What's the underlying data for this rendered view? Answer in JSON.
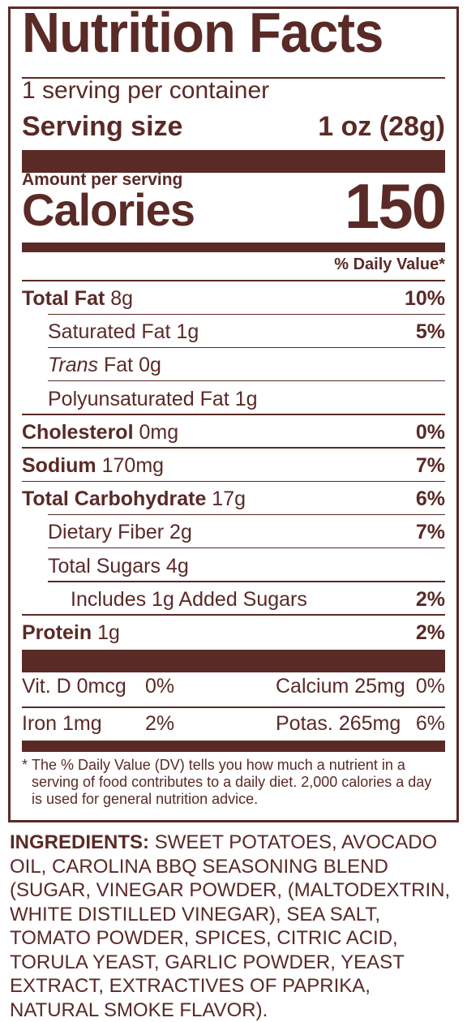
{
  "title": "Nutrition Facts",
  "servings_per_container": "1 serving per container",
  "serving_size_label": "Serving size",
  "serving_size_value": "1 oz (28g)",
  "amount_per_serving": "Amount per serving",
  "calories_label": "Calories",
  "calories_value": "150",
  "daily_value_header": "% Daily Value*",
  "nutrients": [
    {
      "bold": "Total Fat",
      "italic": "",
      "rest": " 8g",
      "pct": "10%"
    },
    {
      "bold": "",
      "italic": "",
      "rest": "Saturated Fat 1g",
      "pct": "5%"
    },
    {
      "bold": "",
      "italic": "Trans",
      "rest": " Fat 0g",
      "pct": ""
    },
    {
      "bold": "",
      "italic": "",
      "rest": "Polyunsaturated Fat 1g",
      "pct": ""
    },
    {
      "bold": "Cholesterol",
      "italic": "",
      "rest": " 0mg",
      "pct": "0%"
    },
    {
      "bold": "Sodium",
      "italic": "",
      "rest": " 170mg",
      "pct": "7%"
    },
    {
      "bold": "Total Carbohydrate",
      "italic": "",
      "rest": " 17g",
      "pct": "6%"
    },
    {
      "bold": "",
      "italic": "",
      "rest": "Dietary Fiber 2g",
      "pct": "7%"
    },
    {
      "bold": "",
      "italic": "",
      "rest": "Total Sugars 4g",
      "pct": ""
    },
    {
      "bold": "",
      "italic": "",
      "rest": "Includes 1g Added Sugars",
      "pct": "2%"
    },
    {
      "bold": "Protein",
      "italic": "",
      "rest": " 1g",
      "pct": "2%"
    }
  ],
  "vitamins": [
    {
      "left_name": "Vit. D 0mcg",
      "left_pct": "0%",
      "right_name": "Calcium 25mg",
      "right_pct": "0%"
    },
    {
      "left_name": "Iron 1mg",
      "left_pct": "2%",
      "right_name": "Potas. 265mg",
      "right_pct": "6%"
    }
  ],
  "footnote_star": "*",
  "footnote": "The % Daily Value (DV) tells you how much a nutrient in a serving of food contributes to a daily diet. 2,000 calories a day is used for general nutrition advice.",
  "ingredients_label": "INGREDIENTS:",
  "ingredients_text": "SWEET POTATOES, AVOCADO OIL, CAROLINA BBQ SEASONING BLEND (SUGAR, VINEGAR POWDER, (MALTODEXTRIN, WHITE DISTILLED VINEGAR), SEA SALT, TOMATO POWDER, SPICES, CITRIC ACID, TORULA YEAST, GARLIC POWDER, YEAST EXTRACT, EXTRACTIVES OF PAPRIKA, NATURAL SMOKE FLAVOR).",
  "colors": {
    "ink": "#5a2a26",
    "background": "#ffffff"
  }
}
